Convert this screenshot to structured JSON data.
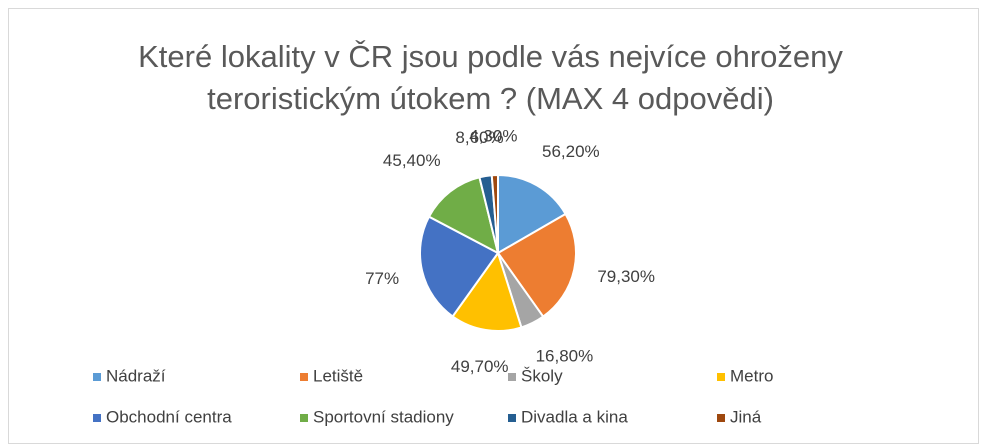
{
  "chart_data": {
    "type": "pie",
    "title": "Které lokality v ČR jsou podle vás nejvíce ohroženy teroristickým útokem ? (MAX 4 odpovědi)",
    "categories": [
      "Nádraží",
      "Letiště",
      "Školy",
      "Metro",
      "Obchodní centra",
      "Sportovní stadiony",
      "Divadla a kina",
      "Jiná"
    ],
    "values": [
      56.2,
      79.3,
      16.8,
      49.7,
      77,
      45.4,
      8.6,
      4.3
    ],
    "value_labels": [
      "56,20%",
      "79,30%",
      "16,80%",
      "49,70%",
      "77%",
      "45,40%",
      "8,60%",
      "4,30%"
    ],
    "colors": [
      "#5b9bd5",
      "#ed7d31",
      "#a5a5a5",
      "#ffc000",
      "#4472c4",
      "#70ad47",
      "#255e91",
      "#9e480e"
    ],
    "legend": "bottom"
  }
}
